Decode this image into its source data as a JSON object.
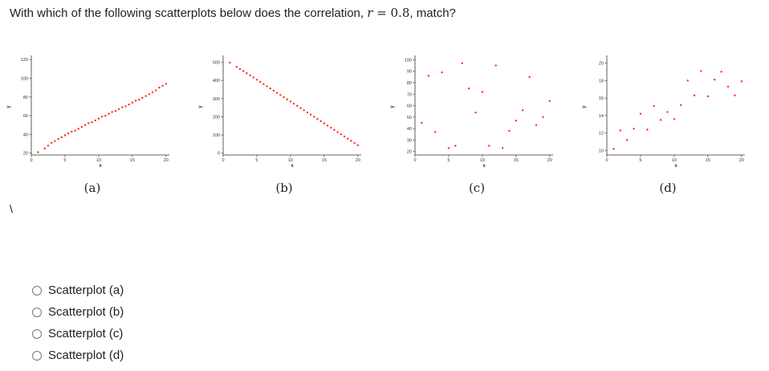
{
  "question": {
    "text_before": "With which of the following scatterplots below does the correlation, ",
    "math_var": "r",
    "math_rest": " = 0.8",
    "text_after": ", match?"
  },
  "stray_mark": "\\",
  "colors": {
    "point": "#ff2a1a",
    "axis": "#333333",
    "text": "#222222"
  },
  "chart_data": [
    {
      "type": "scatter",
      "caption": "(a)",
      "xlabel": "x",
      "ylabel": "y",
      "xlim": [
        0,
        20.5
      ],
      "ylim": [
        18,
        121
      ],
      "xticks": [
        0,
        5,
        10,
        15,
        20
      ],
      "yticks": [
        20,
        40,
        60,
        80,
        100,
        120
      ],
      "x": [
        1,
        2,
        2.5,
        3,
        3.5,
        4,
        4.5,
        5,
        5.5,
        6,
        6.5,
        7,
        7.5,
        8,
        8.5,
        9,
        9.5,
        10,
        10.5,
        11,
        11.5,
        12,
        12.5,
        13,
        13.5,
        14,
        14.5,
        15,
        15.5,
        16,
        16.5,
        17,
        17.5,
        18,
        18.5,
        19,
        19.5,
        20
      ],
      "y": [
        21,
        25,
        28,
        31,
        33,
        35,
        37,
        39,
        41,
        43,
        44,
        46,
        48,
        50,
        52,
        53,
        55,
        57,
        59,
        60,
        62,
        64,
        65,
        67,
        69,
        70,
        72,
        74,
        76,
        77,
        79,
        81,
        83,
        85,
        87,
        90,
        92,
        94
      ]
    },
    {
      "type": "scatter",
      "caption": "(b)",
      "xlabel": "x",
      "ylabel": "y",
      "xlim": [
        0,
        20.5
      ],
      "ylim": [
        -10,
        520
      ],
      "xticks": [
        0,
        5,
        10,
        15,
        20
      ],
      "yticks": [
        0,
        100,
        200,
        300,
        400,
        500
      ],
      "x": [
        1,
        2,
        2.5,
        3,
        3.5,
        4,
        4.5,
        5,
        5.5,
        6,
        6.5,
        7,
        7.5,
        8,
        8.5,
        9,
        9.5,
        10,
        10.5,
        11,
        11.5,
        12,
        12.5,
        13,
        13.5,
        14,
        14.5,
        15,
        15.5,
        16,
        16.5,
        17,
        17.5,
        18,
        18.5,
        19,
        19.5,
        20
      ],
      "y": [
        498,
        475,
        463,
        452,
        440,
        428,
        416,
        404,
        392,
        380,
        368,
        356,
        344,
        332,
        320,
        308,
        296,
        284,
        272,
        260,
        248,
        236,
        224,
        212,
        200,
        188,
        176,
        164,
        152,
        140,
        128,
        116,
        104,
        92,
        80,
        68,
        56,
        44
      ]
    },
    {
      "type": "scatter",
      "caption": "(c)",
      "xlabel": "x",
      "ylabel": "y",
      "xlim": [
        0,
        20.5
      ],
      "ylim": [
        17,
        101
      ],
      "xticks": [
        0,
        5,
        10,
        15,
        20
      ],
      "yticks": [
        20,
        30,
        40,
        50,
        60,
        70,
        80,
        90,
        100
      ],
      "x": [
        1,
        2,
        3,
        4,
        5,
        6,
        7,
        8,
        9,
        10,
        11,
        12,
        13,
        14,
        15,
        16,
        17,
        18,
        19,
        20
      ],
      "y": [
        45,
        86,
        37,
        89,
        23,
        25,
        97,
        75,
        54,
        72,
        25,
        95,
        23,
        38,
        47,
        56,
        85,
        43,
        50,
        64
      ]
    },
    {
      "type": "scatter",
      "caption": "(d)",
      "xlabel": "x",
      "ylabel": "y",
      "xlim": [
        0,
        20.5
      ],
      "ylim": [
        9.5,
        20.5
      ],
      "xticks": [
        0,
        5,
        10,
        15,
        20
      ],
      "yticks": [
        10,
        12,
        14,
        16,
        18,
        20
      ],
      "x": [
        1,
        2,
        3,
        4,
        5,
        6,
        7,
        8,
        9,
        10,
        11,
        12,
        13,
        14,
        15,
        16,
        17,
        18,
        19,
        20
      ],
      "y": [
        10.2,
        12.3,
        11.2,
        12.5,
        14.2,
        12.4,
        15.1,
        13.5,
        14.4,
        13.6,
        15.2,
        18.0,
        16.3,
        19.1,
        16.2,
        18.1,
        19.0,
        17.3,
        16.3,
        17.9
      ]
    }
  ],
  "options": [
    {
      "label": "Scatterplot (a)"
    },
    {
      "label": "Scatterplot (b)"
    },
    {
      "label": "Scatterplot (c)"
    },
    {
      "label": "Scatterplot (d)"
    }
  ]
}
